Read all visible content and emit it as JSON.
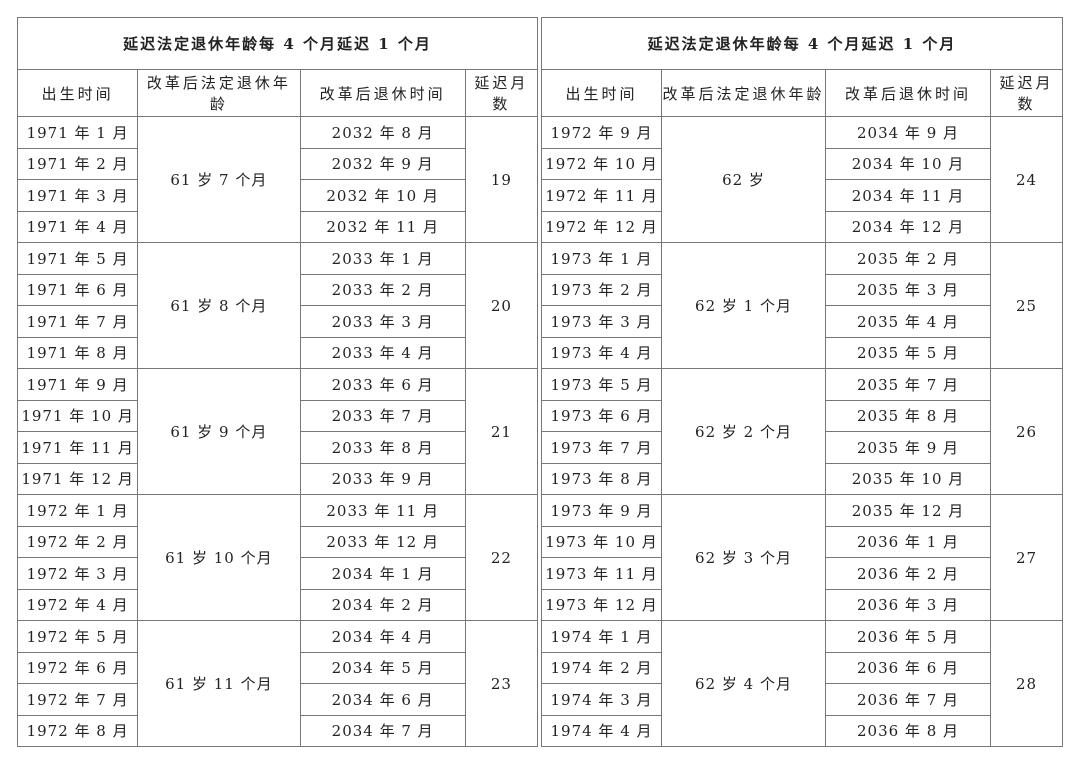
{
  "tables": [
    {
      "title": "延迟法定退休年龄每 4 个月延迟 1 个月",
      "headers": [
        "出生时间",
        "改革后法定退休年龄",
        "改革后退休时间",
        "延迟月数"
      ],
      "groups": [
        {
          "births": [
            "1971 年 1 月",
            "1971 年 2 月",
            "1971 年 3 月",
            "1971 年 4 月"
          ],
          "age": "61 岁 7 个月",
          "retire": [
            "2032 年 8 月",
            "2032 年 9 月",
            "2032 年 10 月",
            "2032 年 11 月"
          ],
          "delay": "19"
        },
        {
          "births": [
            "1971 年 5 月",
            "1971 年 6 月",
            "1971 年 7 月",
            "1971 年 8 月"
          ],
          "age": "61 岁 8 个月",
          "retire": [
            "2033 年 1 月",
            "2033 年 2 月",
            "2033 年 3 月",
            "2033 年 4 月"
          ],
          "delay": "20"
        },
        {
          "births": [
            "1971 年 9 月",
            "1971 年 10 月",
            "1971 年 11 月",
            "1971 年 12 月"
          ],
          "age": "61 岁 9 个月",
          "retire": [
            "2033 年 6 月",
            "2033 年 7 月",
            "2033 年 8 月",
            "2033 年 9 月"
          ],
          "delay": "21"
        },
        {
          "births": [
            "1972 年 1 月",
            "1972 年 2 月",
            "1972 年 3 月",
            "1972 年 4 月"
          ],
          "age": "61 岁 10 个月",
          "retire": [
            "2033 年 11 月",
            "2033 年 12 月",
            "2034 年 1 月",
            "2034 年 2 月"
          ],
          "delay": "22"
        },
        {
          "births": [
            "1972 年 5 月",
            "1972 年 6 月",
            "1972 年 7 月",
            "1972 年 8 月"
          ],
          "age": "61 岁 11 个月",
          "retire": [
            "2034 年 4 月",
            "2034 年 5 月",
            "2034 年 6 月",
            "2034 年 7 月"
          ],
          "delay": "23"
        }
      ]
    },
    {
      "title": "延迟法定退休年龄每 4 个月延迟 1 个月",
      "headers": [
        "出生时间",
        "改革后法定退休年龄",
        "改革后退休时间",
        "延迟月数"
      ],
      "groups": [
        {
          "births": [
            "1972 年 9 月",
            "1972 年 10 月",
            "1972 年 11 月",
            "1972 年 12 月"
          ],
          "age": "62 岁",
          "retire": [
            "2034 年 9 月",
            "2034 年 10 月",
            "2034 年 11 月",
            "2034 年 12 月"
          ],
          "delay": "24"
        },
        {
          "births": [
            "1973 年 1 月",
            "1973 年 2 月",
            "1973 年 3 月",
            "1973 年 4 月"
          ],
          "age": "62 岁 1 个月",
          "retire": [
            "2035 年 2 月",
            "2035 年 3 月",
            "2035 年 4 月",
            "2035 年 5 月"
          ],
          "delay": "25"
        },
        {
          "births": [
            "1973 年 5 月",
            "1973 年 6 月",
            "1973 年 7 月",
            "1973 年 8 月"
          ],
          "age": "62 岁 2 个月",
          "retire": [
            "2035 年 7 月",
            "2035 年 8 月",
            "2035 年 9 月",
            "2035 年 10 月"
          ],
          "delay": "26"
        },
        {
          "births": [
            "1973 年 9 月",
            "1973 年 10 月",
            "1973 年 11 月",
            "1973 年 12 月"
          ],
          "age": "62 岁 3 个月",
          "retire": [
            "2035 年 12 月",
            "2036 年 1 月",
            "2036 年 2 月",
            "2036 年 3 月"
          ],
          "delay": "27"
        },
        {
          "births": [
            "1974 年 1 月",
            "1974 年 2 月",
            "1974 年 3 月",
            "1974 年 4 月"
          ],
          "age": "62 岁 4 个月",
          "retire": [
            "2036 年 5 月",
            "2036 年 6 月",
            "2036 年 7 月",
            "2036 年 8 月"
          ],
          "delay": "28"
        }
      ]
    }
  ]
}
